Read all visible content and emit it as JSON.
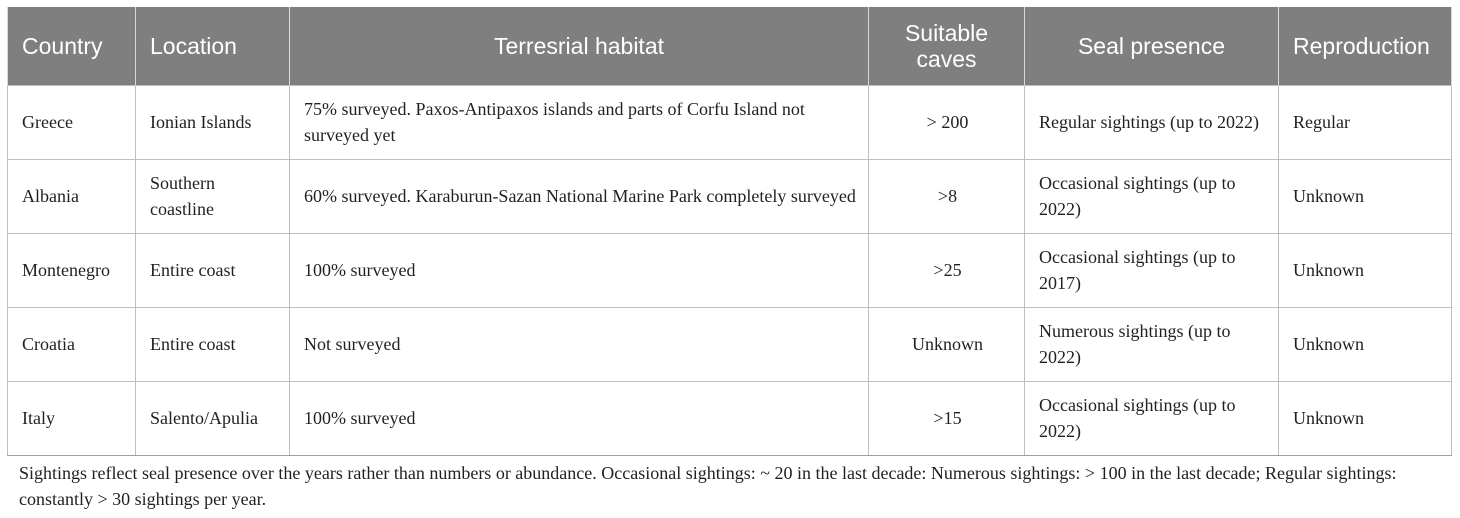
{
  "table": {
    "headers": [
      "Country",
      "Location",
      "Terresrial habitat",
      "Suitable caves",
      "Seal presence",
      "Reproduction"
    ],
    "rows": [
      [
        "Greece",
        "Ionian Islands",
        "75% surveyed. Paxos-Antipaxos islands and parts of Corfu Island not surveyed yet",
        "> 200",
        "Regular sightings (up to 2022)",
        "Regular"
      ],
      [
        "Albania",
        "Southern coastline",
        "60% surveyed. Karaburun-Sazan National Marine Park completely surveyed",
        ">8",
        "Occasional sightings (up to 2022)",
        "Unknown"
      ],
      [
        "Montenegro",
        "Entire coast",
        "100% surveyed",
        ">25",
        "Occasional sightings (up to 2017)",
        "Unknown"
      ],
      [
        "Croatia",
        "Entire coast",
        "Not surveyed",
        "Unknown",
        "Numerous sightings (up to 2022)",
        "Unknown"
      ],
      [
        "Italy",
        "Salento/Apulia",
        "100% surveyed",
        ">15",
        "Occasional sightings (up to 2022)",
        "Unknown"
      ]
    ]
  },
  "footnote": "Sightings reflect seal presence over the years rather than numbers or abundance. Occasional sightings: ~ 20 in the last decade: Numerous sightings: > 100 in the last decade; Regular sightings: constantly > 30 sightings per year.",
  "colors": {
    "header_bg": "#7f7f7f",
    "header_text": "#ffffff",
    "border": "#bfbfbf",
    "body_text": "#231f20"
  }
}
